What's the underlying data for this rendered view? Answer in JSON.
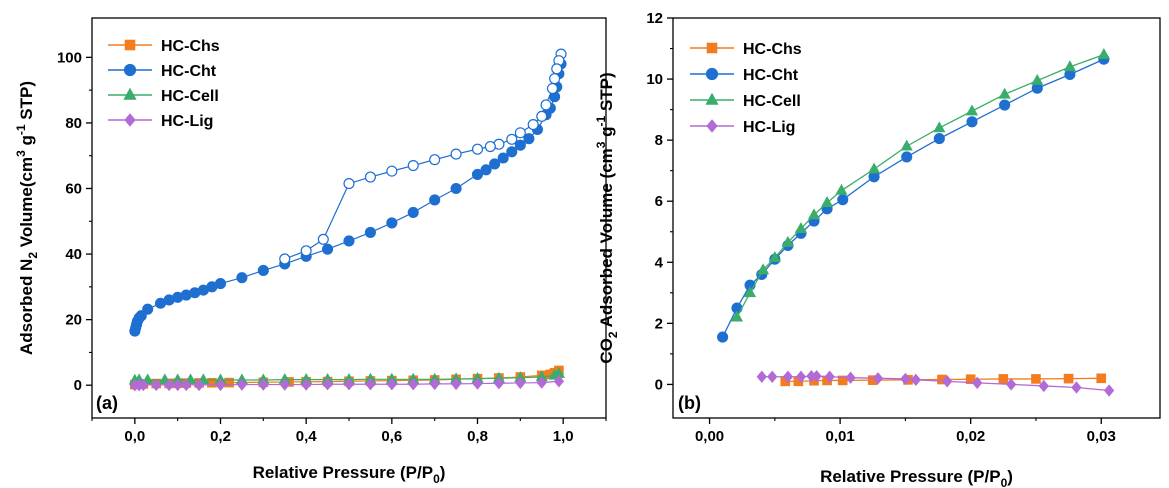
{
  "colors": {
    "HC-Chs": "#f47c20",
    "HC-Cht": "#1f6fd1",
    "HC-Cell": "#3aad6a",
    "HC-Lig": "#b26ad6"
  },
  "chart_data": [
    {
      "type": "scatter",
      "panel_label": "(a)",
      "xlabel_main": "Relative Pressure (P/P",
      "xlabel_sub": "0",
      "xlabel_end": ")",
      "ylabel_pre": "Adsorbed N",
      "ylabel_sub": "2",
      "ylabel_mid": " Volume(cm",
      "ylabel_sup3": "3",
      "ylabel_g": " g",
      "ylabel_sup1": "-1",
      "ylabel_end": " STP)",
      "xlim": [
        -0.1,
        1.1
      ],
      "ylim": [
        -10,
        112
      ],
      "xticks": [
        0.0,
        0.2,
        0.4,
        0.6,
        0.8,
        1.0
      ],
      "xtick_labels": [
        "0,0",
        "0,2",
        "0,4",
        "0,6",
        "0,8",
        "1,0"
      ],
      "yticks": [
        0,
        20,
        40,
        60,
        80,
        100
      ],
      "ytick_labels": [
        "0",
        "20",
        "40",
        "60",
        "80",
        "100"
      ],
      "legend": [
        "HC-Chs",
        "HC-Cht",
        "HC-Cell",
        "HC-Lig"
      ],
      "legend_position": "top-left",
      "series": [
        {
          "name": "HC-Cht",
          "branch": "adsorption",
          "marker": "circle",
          "filled": true,
          "x": [
            0.0,
            0.002,
            0.004,
            0.006,
            0.01,
            0.015,
            0.03,
            0.06,
            0.08,
            0.1,
            0.12,
            0.14,
            0.16,
            0.18,
            0.2,
            0.25,
            0.3,
            0.35,
            0.4,
            0.45,
            0.5,
            0.55,
            0.6,
            0.65,
            0.7,
            0.75,
            0.8,
            0.82,
            0.84,
            0.86,
            0.88,
            0.9,
            0.92,
            0.94,
            0.96,
            0.97,
            0.98,
            0.985,
            0.99,
            0.995
          ],
          "y": [
            16.5,
            17.5,
            18.5,
            19.5,
            20.5,
            21.2,
            23.2,
            25.0,
            26.0,
            26.8,
            27.5,
            28.2,
            29.0,
            30.0,
            31.0,
            32.8,
            35.0,
            37.0,
            39.3,
            41.5,
            44.0,
            46.6,
            49.5,
            52.7,
            56.5,
            60.0,
            64.3,
            65.7,
            67.5,
            69.3,
            71.2,
            73.2,
            75.2,
            78.0,
            82.5,
            84.5,
            88.0,
            91.0,
            95.0,
            98.0
          ]
        },
        {
          "name": "HC-Cht",
          "branch": "desorption",
          "marker": "circle",
          "filled": false,
          "x": [
            0.995,
            0.99,
            0.985,
            0.98,
            0.975,
            0.96,
            0.95,
            0.93,
            0.9,
            0.88,
            0.85,
            0.83,
            0.8,
            0.75,
            0.7,
            0.65,
            0.6,
            0.55,
            0.5,
            0.44,
            0.4,
            0.35
          ],
          "y": [
            101.0,
            99.0,
            96.5,
            93.5,
            90.5,
            85.5,
            82.0,
            79.5,
            77.0,
            75.0,
            73.5,
            72.8,
            72.0,
            70.5,
            68.8,
            67.0,
            65.3,
            63.5,
            61.5,
            44.5,
            41.0,
            38.5
          ]
        },
        {
          "name": "HC-Chs",
          "marker": "square",
          "filled": true,
          "x": [
            0.0,
            0.01,
            0.02,
            0.05,
            0.08,
            0.1,
            0.12,
            0.15,
            0.18,
            0.22,
            0.3,
            0.36,
            0.4,
            0.45,
            0.5,
            0.55,
            0.6,
            0.65,
            0.7,
            0.75,
            0.8,
            0.85,
            0.9,
            0.95,
            0.97,
            0.98,
            0.99
          ],
          "y": [
            0.2,
            0.3,
            0.4,
            0.5,
            0.55,
            0.6,
            0.65,
            0.7,
            0.75,
            0.8,
            0.9,
            1.0,
            1.05,
            1.1,
            1.2,
            1.3,
            1.4,
            1.5,
            1.6,
            1.8,
            2.0,
            2.2,
            2.5,
            3.0,
            3.3,
            3.8,
            4.5
          ]
        },
        {
          "name": "HC-Cell",
          "marker": "triangle",
          "filled": true,
          "x": [
            0.0,
            0.01,
            0.03,
            0.07,
            0.1,
            0.13,
            0.16,
            0.2,
            0.25,
            0.3,
            0.35,
            0.4,
            0.45,
            0.5,
            0.55,
            0.6,
            0.65,
            0.7,
            0.75,
            0.8,
            0.85,
            0.9,
            0.95,
            0.98,
            0.99
          ],
          "y": [
            1.5,
            1.6,
            1.6,
            1.6,
            1.6,
            1.6,
            1.6,
            1.6,
            1.6,
            1.6,
            1.7,
            1.7,
            1.7,
            1.7,
            1.8,
            1.8,
            1.8,
            1.8,
            1.9,
            2.0,
            2.1,
            2.3,
            2.5,
            3.0,
            3.5
          ]
        },
        {
          "name": "HC-Lig",
          "marker": "diamond",
          "filled": true,
          "x": [
            0.0,
            0.01,
            0.02,
            0.05,
            0.08,
            0.1,
            0.12,
            0.15,
            0.2,
            0.25,
            0.3,
            0.35,
            0.4,
            0.45,
            0.5,
            0.55,
            0.6,
            0.65,
            0.7,
            0.75,
            0.8,
            0.85,
            0.9,
            0.95,
            0.99
          ],
          "y": [
            0.0,
            0.0,
            0.1,
            0.1,
            0.1,
            0.1,
            0.1,
            0.1,
            0.1,
            0.2,
            0.2,
            0.2,
            0.2,
            0.3,
            0.3,
            0.3,
            0.3,
            0.3,
            0.4,
            0.4,
            0.5,
            0.6,
            0.7,
            0.8,
            1.2
          ]
        }
      ]
    },
    {
      "type": "line",
      "panel_label": "(b)",
      "xlabel_main": "Relative Pressure (P/P",
      "xlabel_sub": "0",
      "xlabel_end": ")",
      "ylabel_pre": "CO",
      "ylabel_sub": "2",
      "ylabel_mid": " Adsorbed Volume (cm",
      "ylabel_sup3": "3",
      "ylabel_g": " g",
      "ylabel_sup1": "-1",
      "ylabel_end": " STP)",
      "xlim": [
        -0.0028,
        0.0345
      ],
      "ylim": [
        -1.1,
        12.0
      ],
      "xticks": [
        0.0,
        0.01,
        0.02,
        0.03
      ],
      "xtick_labels": [
        "0,00",
        "0,01",
        "0,02",
        "0,03"
      ],
      "yticks": [
        0,
        2,
        4,
        6,
        8,
        10,
        12
      ],
      "ytick_labels": [
        "0",
        "2",
        "4",
        "6",
        "8",
        "10",
        "12"
      ],
      "legend": [
        "HC-Chs",
        "HC-Cht",
        "HC-Cell",
        "HC-Lig"
      ],
      "legend_position": "top-left",
      "series": [
        {
          "name": "HC-Chs",
          "marker": "square",
          "x": [
            0.0058,
            0.0068,
            0.008,
            0.009,
            0.0102,
            0.0125,
            0.0152,
            0.0178,
            0.02,
            0.0225,
            0.025,
            0.0275,
            0.03
          ],
          "y": [
            0.1,
            0.1,
            0.12,
            0.13,
            0.13,
            0.14,
            0.15,
            0.16,
            0.17,
            0.18,
            0.18,
            0.19,
            0.2
          ]
        },
        {
          "name": "HC-Cht",
          "marker": "circle",
          "x": [
            0.001,
            0.0021,
            0.0031,
            0.004,
            0.005,
            0.006,
            0.007,
            0.008,
            0.009,
            0.0102,
            0.0126,
            0.0151,
            0.0176,
            0.0201,
            0.0226,
            0.0251,
            0.0276,
            0.0302
          ],
          "y": [
            1.55,
            2.5,
            3.25,
            3.6,
            4.1,
            4.55,
            4.95,
            5.35,
            5.75,
            6.05,
            6.8,
            7.45,
            8.05,
            8.6,
            9.15,
            9.7,
            10.15,
            10.65
          ]
        },
        {
          "name": "HC-Cell",
          "marker": "triangle",
          "x": [
            0.0021,
            0.0031,
            0.0041,
            0.005,
            0.006,
            0.007,
            0.008,
            0.009,
            0.0101,
            0.0126,
            0.0151,
            0.0176,
            0.0201,
            0.0226,
            0.0251,
            0.0276,
            0.0302
          ],
          "y": [
            2.2,
            3.0,
            3.75,
            4.15,
            4.65,
            5.1,
            5.55,
            5.95,
            6.35,
            7.05,
            7.8,
            8.4,
            8.95,
            9.5,
            9.95,
            10.4,
            10.8
          ]
        },
        {
          "name": "HC-Lig",
          "marker": "diamond",
          "x": [
            0.004,
            0.0048,
            0.006,
            0.007,
            0.0078,
            0.0082,
            0.0092,
            0.0108,
            0.0129,
            0.015,
            0.0158,
            0.0182,
            0.0205,
            0.0231,
            0.0256,
            0.0281,
            0.0306
          ],
          "y": [
            0.25,
            0.25,
            0.25,
            0.25,
            0.27,
            0.27,
            0.25,
            0.22,
            0.2,
            0.18,
            0.15,
            0.1,
            0.05,
            0.0,
            -0.05,
            -0.1,
            -0.2
          ]
        }
      ]
    }
  ]
}
